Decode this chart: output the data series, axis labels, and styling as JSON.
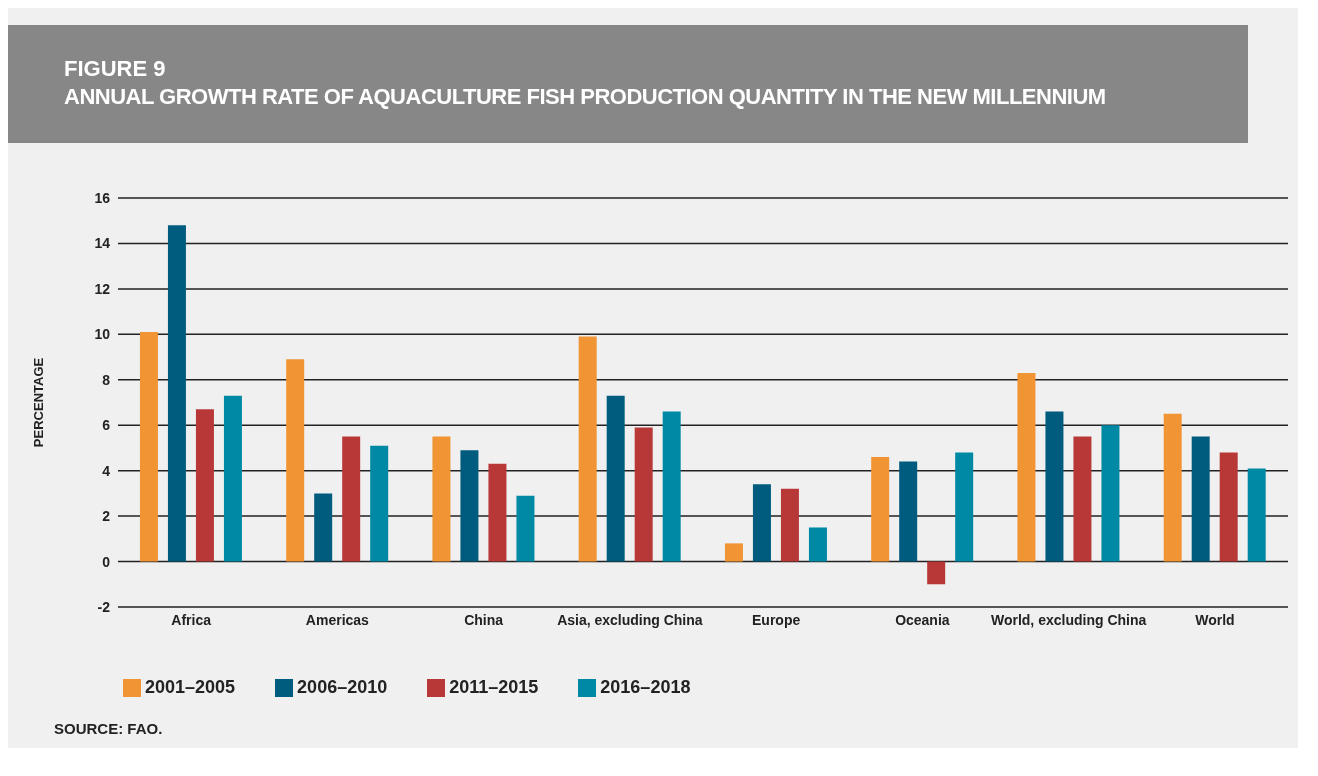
{
  "chart_data": {
    "type": "bar",
    "title": "FIGURE 9",
    "subtitle": "ANNUAL GROWTH RATE OF AQUACULTURE FISH PRODUCTION QUANTITY IN THE NEW MILLENNIUM",
    "ylabel": "PERCENTAGE",
    "categories": [
      "Africa",
      "Americas",
      "China",
      "Asia, excluding China",
      "Europe",
      "Oceania",
      "World, excluding China",
      "World"
    ],
    "series": [
      {
        "name": "2001–2005",
        "color": "#f09434",
        "values": [
          10.1,
          8.9,
          5.5,
          9.9,
          0.8,
          4.6,
          8.3,
          6.5
        ]
      },
      {
        "name": "2006–2010",
        "color": "#005c7e",
        "values": [
          14.8,
          3.0,
          4.9,
          7.3,
          3.4,
          4.4,
          6.6,
          5.5
        ]
      },
      {
        "name": "2011–2015",
        "color": "#b83838",
        "values": [
          6.7,
          5.5,
          4.3,
          5.9,
          3.2,
          -1.0,
          5.5,
          4.8
        ]
      },
      {
        "name": "2016–2018",
        "color": "#0089a5",
        "values": [
          7.3,
          5.1,
          2.9,
          6.6,
          1.5,
          4.8,
          6.0,
          4.1
        ]
      }
    ],
    "ylim": [
      -2,
      16
    ],
    "yticks": [
      -2,
      0,
      2,
      4,
      6,
      8,
      10,
      12,
      14,
      16
    ],
    "grid": "y",
    "legend": "bottom left",
    "annotations": [
      "SOURCE: FAO."
    ]
  }
}
